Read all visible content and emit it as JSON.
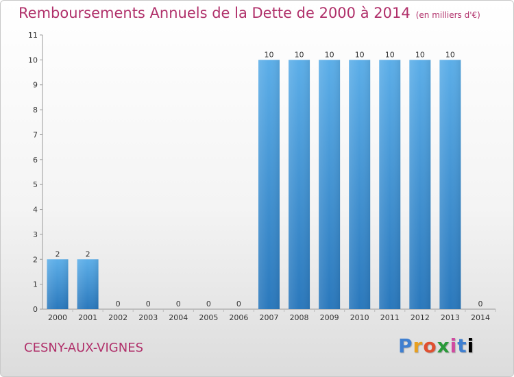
{
  "title": "Remboursements Annuels de la Dette de 2000 à 2014",
  "unit": "(en milliers d'€)",
  "commune": "CESNY-AUX-VIGNES",
  "logo": "Proxiti",
  "colors": {
    "title": "#b0306a",
    "bar_top": "#5caee8",
    "bar_bottom": "#2a78bc"
  },
  "chart_data": {
    "type": "bar",
    "title": "Remboursements Annuels de la Dette de 2000 à 2014",
    "categories": [
      "2000",
      "2001",
      "2002",
      "2003",
      "2004",
      "2005",
      "2006",
      "2007",
      "2008",
      "2009",
      "2010",
      "2011",
      "2012",
      "2013",
      "2014"
    ],
    "values": [
      2,
      2,
      0,
      0,
      0,
      0,
      0,
      10,
      10,
      10,
      10,
      10,
      10,
      10,
      0
    ],
    "yticks": [
      0,
      1,
      2,
      3,
      4,
      5,
      6,
      7,
      8,
      9,
      10,
      11
    ],
    "ylim": [
      0,
      11
    ],
    "grid": false
  }
}
